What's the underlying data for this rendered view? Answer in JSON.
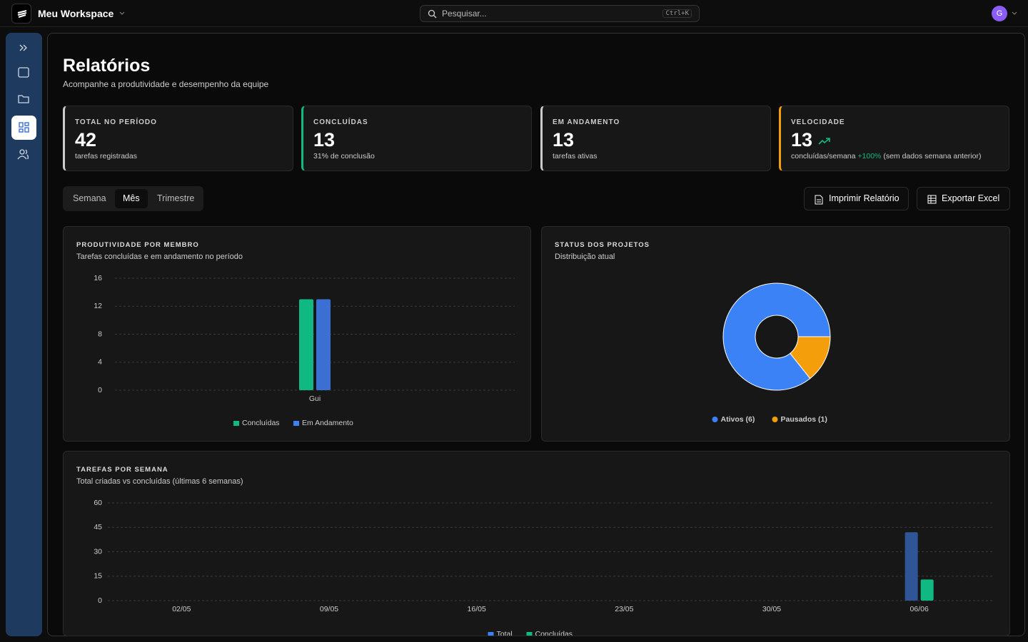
{
  "header": {
    "workspace": "Meu Workspace",
    "search_placeholder": "Pesquisar...",
    "shortcut": "Ctrl+K",
    "avatar": "G"
  },
  "page": {
    "title": "Relatórios",
    "subtitle": "Acompanhe a produtividade e desempenho da equipe"
  },
  "stats": [
    {
      "label": "TOTAL NO PERÍODO",
      "value": 42,
      "note": "tarefas registradas"
    },
    {
      "label": "CONCLUÍDAS",
      "value": 13,
      "note": "31% de conclusão"
    },
    {
      "label": "EM ANDAMENTO",
      "value": 13,
      "note": "tarefas ativas"
    },
    {
      "label": "VELOCIDADE",
      "value": 13,
      "note": "concluídas/semana",
      "trend": "+100%",
      "trend_note": "(sem dados semana anterior)"
    }
  ],
  "tabs": {
    "items": [
      "Semana",
      "Mês",
      "Trimestre"
    ],
    "active": 1
  },
  "actions": [
    "Imprimir Relatório",
    "Exportar Excel"
  ],
  "chart_data": [
    {
      "type": "bar",
      "title": "PRODUTIVIDADE POR MEMBRO",
      "subtitle": "Tarefas concluídas e em andamento no período",
      "categories": [
        "Gui"
      ],
      "series": [
        {
          "name": "Concluídas",
          "color": "#10b981",
          "values": [
            13
          ]
        },
        {
          "name": "Em Andamento",
          "color": "#3b6fd4",
          "values": [
            13
          ]
        }
      ],
      "ylim": [
        0,
        16
      ],
      "yticks": [
        0,
        4,
        8,
        12,
        16
      ],
      "grid": true
    },
    {
      "type": "pie",
      "title": "STATUS DOS PROJETOS",
      "subtitle": "Distribuição atual",
      "categories": [
        "Ativos (6)",
        "Pausados (1)"
      ],
      "values": [
        6,
        1
      ],
      "colors": [
        "#3b82f6",
        "#f59e0b"
      ],
      "donut": true
    },
    {
      "type": "bar",
      "title": "TAREFAS POR SEMANA",
      "subtitle": "Total criadas vs concluídas (últimas 6 semanas)",
      "categories": [
        "02/05",
        "09/05",
        "16/05",
        "23/05",
        "30/05",
        "06/06"
      ],
      "series": [
        {
          "name": "Total",
          "color": "#2f5597",
          "values": [
            0,
            0,
            0,
            0,
            0,
            42
          ]
        },
        {
          "name": "Concluídas",
          "color": "#10b981",
          "values": [
            0,
            0,
            0,
            0,
            0,
            13
          ]
        }
      ],
      "ylim": [
        0,
        60
      ],
      "yticks": [
        0,
        15,
        30,
        45,
        60
      ],
      "grid": true
    }
  ]
}
